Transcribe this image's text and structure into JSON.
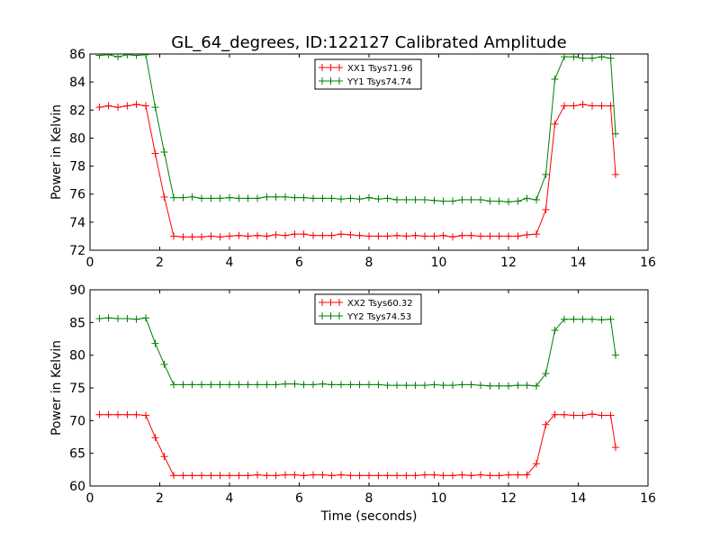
{
  "figure": {
    "title": "GL_64_degrees, ID:122127 Calibrated Amplitude"
  },
  "chart_data": [
    {
      "type": "line",
      "title": "GL_64_degrees, ID:122127 Calibrated Amplitude",
      "xlabel": "",
      "ylabel": "Power in Kelvin",
      "xlim": [
        0,
        16
      ],
      "ylim": [
        72,
        86
      ],
      "xticks": [
        "0",
        "2",
        "4",
        "6",
        "8",
        "10",
        "12",
        "14",
        "16"
      ],
      "yticks": [
        "72",
        "74",
        "76",
        "78",
        "80",
        "82",
        "84",
        "86"
      ],
      "grid": false,
      "legend_position": "upper-center",
      "x": [
        0.27,
        0.53,
        0.8,
        1.07,
        1.33,
        1.6,
        1.87,
        2.13,
        2.4,
        2.67,
        2.93,
        3.2,
        3.47,
        3.73,
        4.0,
        4.27,
        4.53,
        4.8,
        5.07,
        5.33,
        5.6,
        5.87,
        6.13,
        6.4,
        6.67,
        6.93,
        7.2,
        7.47,
        7.73,
        8.0,
        8.27,
        8.53,
        8.8,
        9.07,
        9.33,
        9.6,
        9.87,
        10.13,
        10.4,
        10.67,
        10.93,
        11.2,
        11.47,
        11.73,
        12.0,
        12.27,
        12.53,
        12.8,
        13.07,
        13.33,
        13.6,
        13.87,
        14.13,
        14.4,
        14.67,
        14.93,
        15.07
      ],
      "series": [
        {
          "name": "XX1 Tsys71.96",
          "color": "#ff0000",
          "values": [
            82.2,
            82.3,
            82.2,
            82.3,
            82.4,
            82.3,
            78.9,
            75.8,
            73.0,
            72.95,
            72.95,
            72.95,
            73.0,
            72.95,
            73.0,
            73.05,
            73.0,
            73.05,
            73.0,
            73.1,
            73.05,
            73.15,
            73.15,
            73.05,
            73.05,
            73.05,
            73.15,
            73.1,
            73.05,
            73.0,
            73.0,
            73.0,
            73.05,
            73.0,
            73.05,
            73.0,
            73.0,
            73.05,
            72.95,
            73.05,
            73.05,
            73.0,
            73.0,
            73.0,
            73.0,
            73.0,
            73.1,
            73.15,
            74.9,
            81.0,
            82.3,
            82.3,
            82.4,
            82.3,
            82.3,
            82.3,
            77.4
          ]
        },
        {
          "name": "YY1 Tsys74.74",
          "color": "#008000",
          "values": [
            85.9,
            85.95,
            85.8,
            85.95,
            85.9,
            85.95,
            82.2,
            79.0,
            75.75,
            75.75,
            75.8,
            75.7,
            75.7,
            75.7,
            75.75,
            75.7,
            75.7,
            75.7,
            75.8,
            75.8,
            75.8,
            75.75,
            75.75,
            75.7,
            75.7,
            75.7,
            75.65,
            75.7,
            75.65,
            75.75,
            75.65,
            75.7,
            75.6,
            75.6,
            75.6,
            75.6,
            75.55,
            75.5,
            75.5,
            75.6,
            75.6,
            75.6,
            75.5,
            75.5,
            75.45,
            75.5,
            75.7,
            75.6,
            77.4,
            84.2,
            85.8,
            85.8,
            85.7,
            85.7,
            85.8,
            85.7,
            80.3
          ]
        }
      ]
    },
    {
      "type": "line",
      "title": "",
      "xlabel": "Time (seconds)",
      "ylabel": "Power in Kelvin",
      "xlim": [
        0,
        16
      ],
      "ylim": [
        60,
        90
      ],
      "xticks": [
        "0",
        "2",
        "4",
        "6",
        "8",
        "10",
        "12",
        "14",
        "16"
      ],
      "yticks": [
        "60",
        "65",
        "70",
        "75",
        "80",
        "85",
        "90"
      ],
      "grid": false,
      "legend_position": "upper-center",
      "x": [
        0.27,
        0.53,
        0.8,
        1.07,
        1.33,
        1.6,
        1.87,
        2.13,
        2.4,
        2.67,
        2.93,
        3.2,
        3.47,
        3.73,
        4.0,
        4.27,
        4.53,
        4.8,
        5.07,
        5.33,
        5.6,
        5.87,
        6.13,
        6.4,
        6.67,
        6.93,
        7.2,
        7.47,
        7.73,
        8.0,
        8.27,
        8.53,
        8.8,
        9.07,
        9.33,
        9.6,
        9.87,
        10.13,
        10.4,
        10.67,
        10.93,
        11.2,
        11.47,
        11.73,
        12.0,
        12.27,
        12.53,
        12.8,
        13.07,
        13.33,
        13.6,
        13.87,
        14.13,
        14.4,
        14.67,
        14.93,
        15.07
      ],
      "series": [
        {
          "name": "XX2 Tsys60.32",
          "color": "#ff0000",
          "values": [
            70.9,
            70.9,
            70.9,
            70.9,
            70.9,
            70.8,
            67.4,
            64.5,
            61.6,
            61.6,
            61.6,
            61.6,
            61.6,
            61.6,
            61.6,
            61.6,
            61.6,
            61.7,
            61.6,
            61.6,
            61.7,
            61.7,
            61.6,
            61.7,
            61.7,
            61.6,
            61.7,
            61.6,
            61.6,
            61.6,
            61.6,
            61.6,
            61.6,
            61.6,
            61.6,
            61.7,
            61.7,
            61.6,
            61.6,
            61.7,
            61.6,
            61.7,
            61.6,
            61.6,
            61.7,
            61.7,
            61.7,
            63.4,
            69.4,
            70.9,
            70.9,
            70.8,
            70.8,
            71.0,
            70.8,
            70.8,
            65.9
          ]
        },
        {
          "name": "YY2 Tsys74.53",
          "color": "#008000",
          "values": [
            85.6,
            85.7,
            85.6,
            85.6,
            85.5,
            85.7,
            81.8,
            78.6,
            75.5,
            75.5,
            75.5,
            75.5,
            75.5,
            75.5,
            75.5,
            75.5,
            75.5,
            75.5,
            75.5,
            75.5,
            75.6,
            75.6,
            75.5,
            75.5,
            75.6,
            75.5,
            75.5,
            75.5,
            75.5,
            75.5,
            75.5,
            75.4,
            75.4,
            75.4,
            75.4,
            75.4,
            75.5,
            75.4,
            75.4,
            75.5,
            75.5,
            75.4,
            75.3,
            75.3,
            75.3,
            75.4,
            75.4,
            75.3,
            77.2,
            83.8,
            85.5,
            85.5,
            85.5,
            85.5,
            85.4,
            85.5,
            80.0
          ]
        }
      ]
    }
  ]
}
